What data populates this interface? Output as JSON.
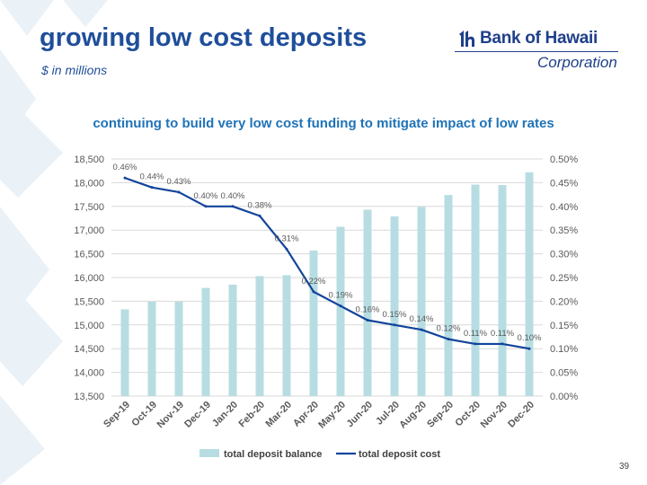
{
  "slide": {
    "title": "growing low cost deposits",
    "subtitle": "$ in millions",
    "page_number": "39",
    "colors": {
      "title": "#1f4e9a",
      "chart_title": "#1f73b7",
      "bar": "#b7dde2",
      "line": "#12449b"
    }
  },
  "logo": {
    "brand": "Bank of Hawaii",
    "corporation": "Corporation",
    "icon": "boh-emblem-icon"
  },
  "chart_data": {
    "type": "bar",
    "title": "continuing to build very low cost funding to mitigate impact of low rates",
    "categories": [
      "Sep-19",
      "Oct-19",
      "Nov-19",
      "Dec-19",
      "Jan-20",
      "Feb-20",
      "Mar-20",
      "Apr-20",
      "May-20",
      "Jun-20",
      "Jul-20",
      "Aug-20",
      "Sep-20",
      "Oct-20",
      "Nov-20",
      "Dec-20"
    ],
    "series": [
      {
        "name": "total deposit balance",
        "type": "bar",
        "axis": "left",
        "values": [
          15330,
          15490,
          15490,
          15780,
          15850,
          16030,
          16050,
          16570,
          17070,
          17430,
          17290,
          17490,
          17740,
          17960,
          17950,
          18220
        ]
      },
      {
        "name": "total deposit cost",
        "type": "line",
        "axis": "right",
        "values": [
          0.46,
          0.44,
          0.43,
          0.4,
          0.4,
          0.38,
          0.31,
          0.22,
          0.19,
          0.16,
          0.15,
          0.14,
          0.12,
          0.11,
          0.11,
          0.1
        ],
        "labels": [
          "0.46%",
          "0.44%",
          "0.43%",
          "0.40%",
          "0.40%",
          "0.38%",
          "0.31%",
          "0.22%",
          "0.19%",
          "0.16%",
          "0.15%",
          "0.14%",
          "0.12%",
          "0.11%",
          "0.11%",
          "0.10%"
        ]
      }
    ],
    "y_left": {
      "lim": [
        13500,
        18500
      ],
      "ticks": [
        13500,
        14000,
        14500,
        15000,
        15500,
        16000,
        16500,
        17000,
        17500,
        18000,
        18500
      ],
      "tick_labels": [
        "13,500",
        "14,000",
        "14,500",
        "15,000",
        "15,500",
        "16,000",
        "16,500",
        "17,000",
        "17,500",
        "18,000",
        "18,500"
      ]
    },
    "y_right": {
      "lim": [
        0.0,
        0.5
      ],
      "ticks": [
        0.0,
        0.05,
        0.1,
        0.15,
        0.2,
        0.25,
        0.3,
        0.35,
        0.4,
        0.45,
        0.5
      ],
      "tick_labels": [
        "0.00%",
        "0.05%",
        "0.10%",
        "0.15%",
        "0.20%",
        "0.25%",
        "0.30%",
        "0.35%",
        "0.40%",
        "0.45%",
        "0.50%"
      ]
    },
    "grid": true,
    "legend": "bottom"
  }
}
